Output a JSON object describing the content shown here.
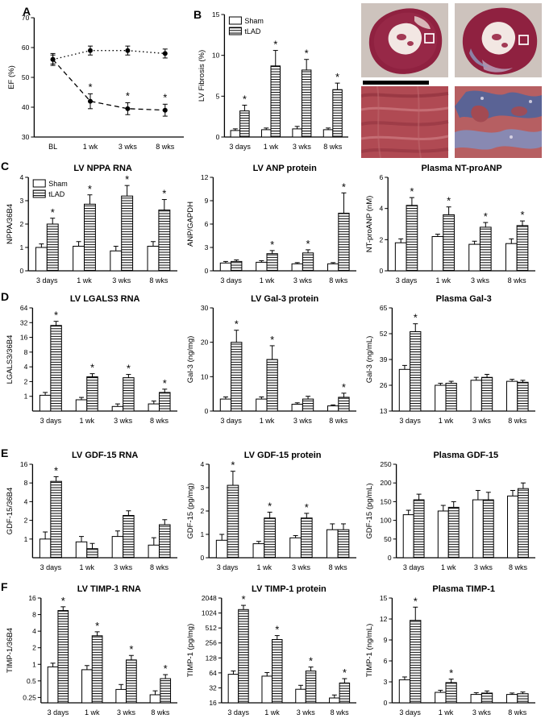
{
  "figure": {
    "panel_labels": [
      "A",
      "B",
      "C",
      "D",
      "E",
      "F"
    ]
  },
  "legend": {
    "sham": "Sham",
    "tlad": "tLAD"
  },
  "chart_data": [
    {
      "type": "line",
      "title": "",
      "ylabel": "EF (%)",
      "categories": [
        "BL",
        "1 wk",
        "3 wks",
        "8 wks"
      ],
      "ymin": 30,
      "ymax": 70,
      "yticks": [
        30,
        40,
        50,
        60,
        70
      ],
      "legend": false,
      "series": [
        {
          "name": "Sham",
          "style": "dotted",
          "values": [
            56,
            59,
            59,
            58
          ],
          "errors": [
            1.5,
            1.5,
            1.5,
            1.5
          ],
          "sig": [
            false,
            false,
            false,
            false
          ]
        },
        {
          "name": "tLAD",
          "style": "dashed",
          "values": [
            56,
            42,
            39.5,
            39
          ],
          "errors": [
            2,
            2.5,
            2,
            2
          ],
          "sig": [
            false,
            true,
            true,
            true
          ]
        }
      ]
    },
    {
      "type": "bar",
      "title": "",
      "ylabel": "LV Fibrosis (%)",
      "categories": [
        "3 days",
        "1 wk",
        "3 wks",
        "8 wks"
      ],
      "ymin": 0,
      "ymax": 15,
      "yticks": [
        0,
        5,
        10,
        15
      ],
      "legend": true,
      "series": [
        {
          "name": "Sham",
          "style": "open",
          "values": [
            0.8,
            0.9,
            1.0,
            0.9
          ],
          "errors": [
            0.2,
            0.2,
            0.3,
            0.2
          ],
          "sig": [
            false,
            false,
            false,
            false
          ]
        },
        {
          "name": "tLAD",
          "style": "hatch",
          "values": [
            3.2,
            8.7,
            8.2,
            5.8
          ],
          "errors": [
            0.7,
            1.9,
            1.3,
            0.8
          ],
          "sig": [
            true,
            true,
            true,
            true
          ]
        }
      ]
    },
    {
      "type": "bar",
      "title": "LV NPPA RNA",
      "ylabel": "NPPA/36B4",
      "categories": [
        "3 days",
        "1 wk",
        "3 wks",
        "8 wks"
      ],
      "ymin": 0,
      "ymax": 4,
      "yticks": [
        0,
        1,
        2,
        3,
        4
      ],
      "legend": true,
      "series": [
        {
          "name": "Sham",
          "style": "open",
          "values": [
            1.0,
            1.05,
            0.85,
            1.05
          ],
          "errors": [
            0.15,
            0.2,
            0.2,
            0.2
          ],
          "sig": [
            false,
            false,
            false,
            false
          ]
        },
        {
          "name": "tLAD",
          "style": "hatch",
          "values": [
            2.0,
            2.85,
            3.2,
            2.6
          ],
          "errors": [
            0.25,
            0.4,
            0.45,
            0.45
          ],
          "sig": [
            true,
            true,
            true,
            true
          ]
        }
      ]
    },
    {
      "type": "bar",
      "title": "LV ANP protein",
      "ylabel": "ANP/GAPDH",
      "categories": [
        "3 days",
        "1 wk",
        "3 wks",
        "8 wks"
      ],
      "ymin": 0,
      "ymax": 12,
      "yticks": [
        0,
        3,
        6,
        9,
        12
      ],
      "legend": false,
      "series": [
        {
          "name": "Sham",
          "style": "open",
          "values": [
            1.0,
            1.1,
            0.9,
            0.9
          ],
          "errors": [
            0.2,
            0.2,
            0.15,
            0.15
          ],
          "sig": [
            false,
            false,
            false,
            false
          ]
        },
        {
          "name": "tLAD",
          "style": "hatch",
          "values": [
            1.2,
            2.2,
            2.3,
            7.4
          ],
          "errors": [
            0.2,
            0.4,
            0.4,
            2.6
          ],
          "sig": [
            false,
            true,
            true,
            true
          ]
        }
      ]
    },
    {
      "type": "bar",
      "title": "Plasma NT-proANP",
      "ylabel": "NT-proANP (nM)",
      "categories": [
        "3 days",
        "1 wk",
        "3 wks",
        "8 wks"
      ],
      "ymin": 0,
      "ymax": 6,
      "yticks": [
        0,
        2,
        4,
        6
      ],
      "legend": false,
      "series": [
        {
          "name": "Sham",
          "style": "open",
          "values": [
            1.8,
            2.2,
            1.7,
            1.75
          ],
          "errors": [
            0.25,
            0.15,
            0.2,
            0.3
          ],
          "sig": [
            false,
            false,
            false,
            false
          ]
        },
        {
          "name": "tLAD",
          "style": "hatch",
          "values": [
            4.2,
            3.6,
            2.8,
            2.9
          ],
          "errors": [
            0.5,
            0.5,
            0.3,
            0.3
          ],
          "sig": [
            true,
            true,
            true,
            true
          ]
        }
      ]
    },
    {
      "type": "bar",
      "title": "LV LGALS3 RNA",
      "ylabel": "LGALS3/36B4",
      "categories": [
        "3 days",
        "1 wk",
        "3 wks",
        "8 wks"
      ],
      "yscale": "log2",
      "ymin": 0.5,
      "ymax": 64,
      "yticks": [
        1,
        2,
        4,
        8,
        16,
        32,
        64
      ],
      "legend": false,
      "series": [
        {
          "name": "Sham",
          "style": "open",
          "values": [
            1.05,
            0.85,
            0.62,
            0.7
          ],
          "errors": [
            0.15,
            0.1,
            0.08,
            0.1
          ],
          "sig": [
            false,
            false,
            false,
            false
          ]
        },
        {
          "name": "tLAD",
          "style": "hatch",
          "values": [
            28,
            2.5,
            2.4,
            1.2
          ],
          "errors": [
            6,
            0.4,
            0.4,
            0.2
          ],
          "sig": [
            true,
            true,
            true,
            true
          ]
        }
      ]
    },
    {
      "type": "bar",
      "title": "LV Gal-3 protein",
      "ylabel": "Gal-3 (ng/mg)",
      "categories": [
        "3 days",
        "1 wk",
        "3 wks",
        "8 wks"
      ],
      "ymin": 0,
      "ymax": 30,
      "yticks": [
        0,
        10,
        20,
        30
      ],
      "legend": false,
      "series": [
        {
          "name": "Sham",
          "style": "open",
          "values": [
            3.5,
            3.5,
            2.0,
            1.5
          ],
          "errors": [
            0.6,
            0.6,
            0.4,
            0.3
          ],
          "sig": [
            false,
            false,
            false,
            false
          ]
        },
        {
          "name": "tLAD",
          "style": "hatch",
          "values": [
            20,
            15,
            3.5,
            4.0
          ],
          "errors": [
            3.5,
            4,
            0.8,
            1.2
          ],
          "sig": [
            true,
            true,
            false,
            true
          ]
        }
      ]
    },
    {
      "type": "bar",
      "title": "Plasma Gal-3",
      "ylabel": "Gal-3 (ng/mL)",
      "categories": [
        "3 days",
        "1 wk",
        "3 wks",
        "8 wks"
      ],
      "ymin": 13,
      "ymax": 65,
      "yticks": [
        13,
        26,
        39,
        52,
        65
      ],
      "legend": false,
      "series": [
        {
          "name": "Sham",
          "style": "open",
          "values": [
            34,
            26,
            28.5,
            28
          ],
          "errors": [
            2,
            1,
            1.5,
            1
          ],
          "sig": [
            false,
            false,
            false,
            false
          ]
        },
        {
          "name": "tLAD",
          "style": "hatch",
          "values": [
            53,
            27,
            30,
            27.5
          ],
          "errors": [
            4,
            1,
            1.5,
            1
          ],
          "sig": [
            true,
            false,
            false,
            false
          ]
        }
      ]
    },
    {
      "type": "bar",
      "title": "LV GDF-15 RNA",
      "ylabel": "GDF-15/36B4",
      "categories": [
        "3 days",
        "1 wk",
        "3 wks",
        "8 wks"
      ],
      "yscale": "log2",
      "ymin": 0.5,
      "ymax": 16,
      "yticks": [
        1,
        2,
        4,
        8,
        16
      ],
      "legend": false,
      "series": [
        {
          "name": "Sham",
          "style": "open",
          "values": [
            1.0,
            0.9,
            1.1,
            0.8
          ],
          "errors": [
            0.3,
            0.2,
            0.25,
            0.25
          ],
          "sig": [
            false,
            false,
            false,
            false
          ]
        },
        {
          "name": "tLAD",
          "style": "hatch",
          "values": [
            8.5,
            0.7,
            2.4,
            1.7
          ],
          "errors": [
            1.6,
            0.15,
            0.45,
            0.35
          ],
          "sig": [
            true,
            false,
            false,
            false
          ]
        }
      ]
    },
    {
      "type": "bar",
      "title": "LV GDF-15 protein",
      "ylabel": "GDF-15 (pg/mg)",
      "categories": [
        "3 days",
        "1 wk",
        "3 wks",
        "8 wks"
      ],
      "ymin": 0,
      "ymax": 4,
      "yticks": [
        0,
        1,
        2,
        3,
        4
      ],
      "legend": false,
      "series": [
        {
          "name": "Sham",
          "style": "open",
          "values": [
            0.75,
            0.6,
            0.85,
            1.2
          ],
          "errors": [
            0.25,
            0.1,
            0.1,
            0.25
          ],
          "sig": [
            false,
            false,
            false,
            false
          ]
        },
        {
          "name": "tLAD",
          "style": "hatch",
          "values": [
            3.1,
            1.7,
            1.7,
            1.2
          ],
          "errors": [
            0.6,
            0.25,
            0.2,
            0.25
          ],
          "sig": [
            true,
            true,
            true,
            false
          ]
        }
      ]
    },
    {
      "type": "bar",
      "title": "Plasma GDF-15",
      "ylabel": "GDF-15 (pg/mL)",
      "categories": [
        "3 days",
        "1 wk",
        "3 wks",
        "8 wks"
      ],
      "ymin": 0,
      "ymax": 250,
      "yticks": [
        0,
        50,
        100,
        150,
        200,
        250
      ],
      "legend": false,
      "series": [
        {
          "name": "Sham",
          "style": "open",
          "values": [
            115,
            125,
            155,
            165
          ],
          "errors": [
            12,
            15,
            25,
            15
          ],
          "sig": [
            false,
            false,
            false,
            false
          ]
        },
        {
          "name": "tLAD",
          "style": "hatch",
          "values": [
            155,
            135,
            155,
            185
          ],
          "errors": [
            15,
            15,
            20,
            15
          ],
          "sig": [
            false,
            false,
            false,
            false
          ]
        }
      ]
    },
    {
      "type": "bar",
      "title": "LV TIMP-1 RNA",
      "ylabel": "TIMP-1/36B4",
      "categories": [
        "3 days",
        "1 wk",
        "3 wks",
        "8 wks"
      ],
      "yscale": "log2",
      "ymin": 0.2,
      "ymax": 16,
      "yticks": [
        0.25,
        0.5,
        1,
        2,
        4,
        8,
        16
      ],
      "legend": false,
      "series": [
        {
          "name": "Sham",
          "style": "open",
          "values": [
            0.9,
            0.8,
            0.35,
            0.28
          ],
          "errors": [
            0.15,
            0.15,
            0.08,
            0.05
          ],
          "sig": [
            false,
            false,
            false,
            false
          ]
        },
        {
          "name": "tLAD",
          "style": "hatch",
          "values": [
            9.5,
            3.3,
            1.2,
            0.55
          ],
          "errors": [
            1.6,
            0.6,
            0.25,
            0.1
          ],
          "sig": [
            true,
            true,
            true,
            true
          ]
        }
      ]
    },
    {
      "type": "bar",
      "title": "LV TIMP-1 protein",
      "ylabel": "TIMP-1 (pg/mg)",
      "categories": [
        "3 days",
        "1 wk",
        "3 wks",
        "8 wks"
      ],
      "yscale": "log2",
      "ymin": 16,
      "ymax": 2048,
      "yticks": [
        16,
        32,
        64,
        128,
        256,
        512,
        1024,
        2048
      ],
      "legend": false,
      "series": [
        {
          "name": "Sham",
          "style": "open",
          "values": [
            60,
            55,
            30,
            20
          ],
          "errors": [
            10,
            10,
            6,
            3
          ],
          "sig": [
            false,
            false,
            false,
            false
          ]
        },
        {
          "name": "tLAD",
          "style": "hatch",
          "values": [
            1200,
            300,
            70,
            40
          ],
          "errors": [
            260,
            60,
            14,
            9
          ],
          "sig": [
            true,
            true,
            true,
            true
          ]
        }
      ]
    },
    {
      "type": "bar",
      "title": "Plasma TIMP-1",
      "ylabel": "TIMP-1 (ng/mL)",
      "categories": [
        "3 days",
        "1 wk",
        "3 wks",
        "8 wks"
      ],
      "ymin": 0,
      "ymax": 15,
      "yticks": [
        0,
        3,
        6,
        9,
        12,
        15
      ],
      "legend": false,
      "series": [
        {
          "name": "Sham",
          "style": "open",
          "values": [
            3.3,
            1.5,
            1.2,
            1.2
          ],
          "errors": [
            0.4,
            0.3,
            0.25,
            0.2
          ],
          "sig": [
            false,
            false,
            false,
            false
          ]
        },
        {
          "name": "tLAD",
          "style": "hatch",
          "values": [
            11.8,
            2.9,
            1.4,
            1.3
          ],
          "errors": [
            1.9,
            0.5,
            0.3,
            0.25
          ],
          "sig": [
            true,
            true,
            false,
            false
          ]
        }
      ]
    }
  ]
}
